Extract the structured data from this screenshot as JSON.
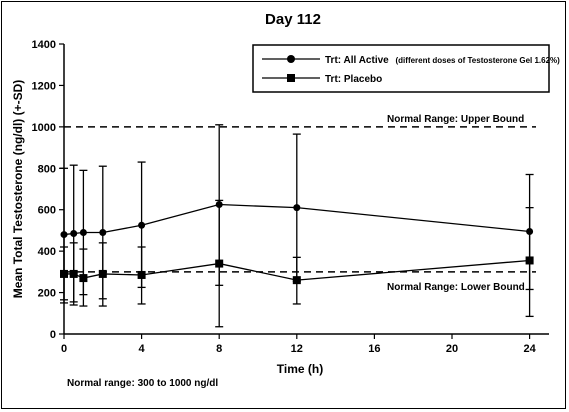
{
  "chart_data": {
    "type": "line",
    "title": "Day 112",
    "xlabel": "Time (h)",
    "ylabel": "Mean Total Testosterone (ng/dl) (+-SD)",
    "xlim": [
      0,
      25
    ],
    "ylim": [
      0,
      1400
    ],
    "x_ticks": [
      "0",
      "4",
      "8",
      "12",
      "16",
      "20",
      "24"
    ],
    "y_ticks": [
      "0",
      "200",
      "400",
      "600",
      "800",
      "1000",
      "1200",
      "1400"
    ],
    "legend_position": "top-right",
    "series": [
      {
        "name": "Trt: All Active",
        "name_detail": "(different doses of Testosterone Gel 1.62%)",
        "marker": "circle",
        "x": [
          0,
          0.5,
          1,
          2,
          4,
          8,
          12,
          24
        ],
        "y": [
          480,
          485,
          490,
          490,
          525,
          625,
          610,
          495
        ],
        "sd_upper": [
          800,
          815,
          790,
          810,
          830,
          1010,
          965,
          770
        ],
        "sd_lower": [
          165,
          155,
          190,
          170,
          225,
          235,
          255,
          215
        ]
      },
      {
        "name": "Trt: Placebo",
        "marker": "square",
        "x": [
          0,
          0.5,
          1,
          2,
          4,
          8,
          12,
          24
        ],
        "y": [
          290,
          290,
          270,
          290,
          285,
          340,
          260,
          355
        ],
        "sd_upper": [
          420,
          440,
          410,
          440,
          420,
          645,
          370,
          610
        ],
        "sd_lower": [
          150,
          140,
          135,
          135,
          145,
          35,
          145,
          85
        ]
      }
    ],
    "reference_lines": [
      {
        "label": "Normal Range: Upper Bound",
        "y": 1000,
        "style": "dashed"
      },
      {
        "label": "Normal Range: Lower Bound",
        "y": 300,
        "style": "dashed"
      }
    ],
    "footnote": "Normal range: 300 to 1000 ng/dl"
  }
}
